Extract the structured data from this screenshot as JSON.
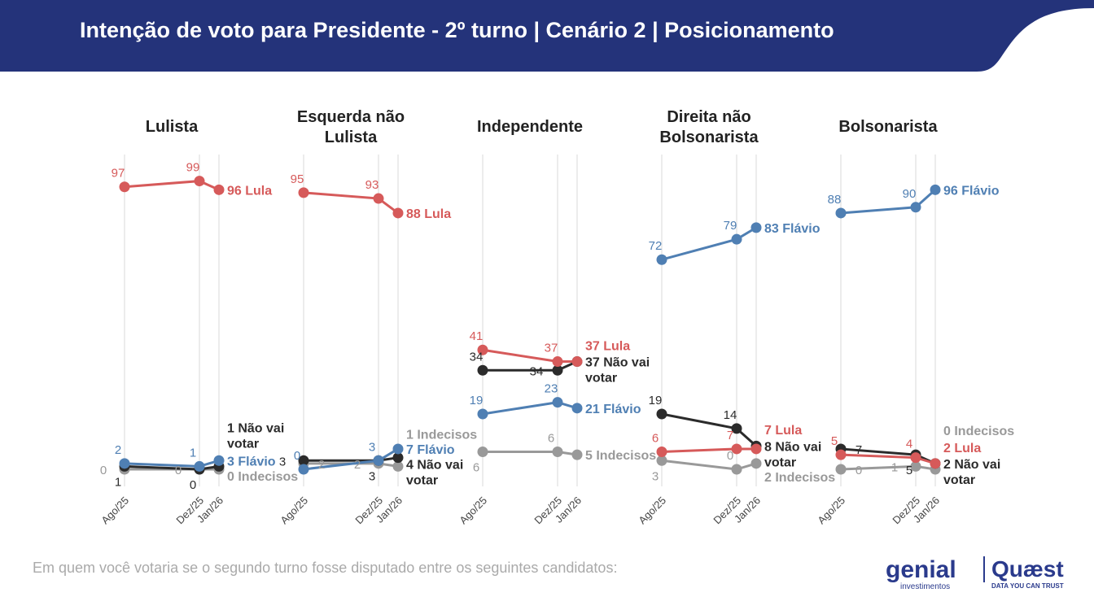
{
  "header": {
    "title": "Intenção de voto para Presidente - 2º turno | Cenário 2 | Posicionamento"
  },
  "footer": {
    "question": "Em quem você votaria se o segundo turno fosse disputado entre os seguintes candidatos:"
  },
  "logos": {
    "genial": "genial",
    "genial_sub": "investimentos",
    "quaest": "Quæst",
    "quaest_sub": "DATA YOU CAN TRUST"
  },
  "colors": {
    "header": "#24337a",
    "Lula": "#d65a5a",
    "Flávio": "#4f7fb3",
    "Não vai votar": "#2b2b2b",
    "Indecisos": "#999999"
  },
  "chart_data": {
    "type": "line",
    "x": [
      "Ago/25",
      "Dez/25",
      "Jan/26"
    ],
    "ylim": [
      0,
      100
    ],
    "panels": [
      {
        "title": [
          "Lulista"
        ],
        "series": [
          {
            "name": "Lula",
            "values": [
              97,
              99,
              96
            ]
          },
          {
            "name": "Flávio",
            "values": [
              2,
              1,
              3
            ]
          },
          {
            "name": "Não vai votar",
            "values": [
              1,
              0,
              1
            ]
          },
          {
            "name": "Indecisos",
            "values": [
              0,
              0,
              0
            ]
          }
        ]
      },
      {
        "title": [
          "Esquerda não",
          "Lulista"
        ],
        "series": [
          {
            "name": "Lula",
            "values": [
              95,
              93,
              88
            ]
          },
          {
            "name": "Flávio",
            "values": [
              0,
              3,
              7
            ]
          },
          {
            "name": "Não vai votar",
            "values": [
              3,
              3,
              4
            ]
          },
          {
            "name": "Indecisos",
            "values": [
              2,
              2,
              1
            ]
          }
        ]
      },
      {
        "title": [
          "Independente"
        ],
        "series": [
          {
            "name": "Lula",
            "values": [
              41,
              37,
              37
            ]
          },
          {
            "name": "Flávio",
            "values": [
              19,
              23,
              21
            ]
          },
          {
            "name": "Não vai votar",
            "values": [
              34,
              34,
              37
            ]
          },
          {
            "name": "Indecisos",
            "values": [
              6,
              6,
              5
            ]
          }
        ]
      },
      {
        "title": [
          "Direita não",
          "Bolsonarista"
        ],
        "series": [
          {
            "name": "Lula",
            "values": [
              6,
              7,
              7
            ]
          },
          {
            "name": "Flávio",
            "values": [
              72,
              79,
              83
            ]
          },
          {
            "name": "Não vai votar",
            "values": [
              19,
              14,
              8
            ]
          },
          {
            "name": "Indecisos",
            "values": [
              3,
              0,
              2
            ]
          }
        ]
      },
      {
        "title": [
          "Bolsonarista"
        ],
        "series": [
          {
            "name": "Lula",
            "values": [
              5,
              4,
              2
            ]
          },
          {
            "name": "Flávio",
            "values": [
              88,
              90,
              96
            ]
          },
          {
            "name": "Não vai votar",
            "values": [
              7,
              5,
              2
            ]
          },
          {
            "name": "Indecisos",
            "values": [
              0,
              1,
              0
            ]
          }
        ]
      }
    ]
  }
}
